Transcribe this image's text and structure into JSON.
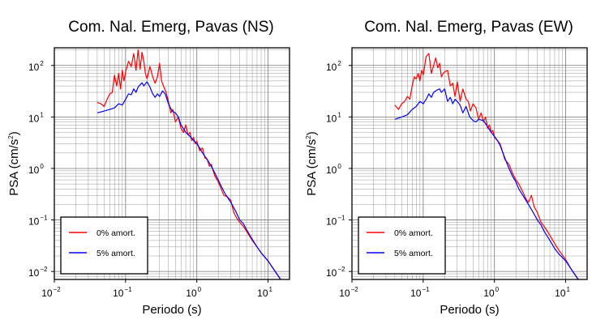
{
  "chart_data": [
    {
      "type": "line",
      "title": "Com. Nal. Emerg, Pavas (NS)",
      "xlabel": "Periodo (s)",
      "ylabel_prefix": "PSA (cm/s",
      "ylabel_sup": "2",
      "ylabel_suffix": ")",
      "x_scale": "log",
      "y_scale": "log",
      "xlim": [
        0.01,
        20
      ],
      "ylim": [
        0.007,
        220
      ],
      "grid": true,
      "legend": "bottom-left",
      "x_ticks": [
        {
          "value": 0.01,
          "base": "10",
          "exp": "−2"
        },
        {
          "value": 0.1,
          "base": "10",
          "exp": "−1"
        },
        {
          "value": 1,
          "base": "10",
          "exp": "0"
        },
        {
          "value": 10,
          "base": "10",
          "exp": "1"
        }
      ],
      "y_ticks": [
        {
          "value": 0.01,
          "base": "10",
          "exp": "−2"
        },
        {
          "value": 0.1,
          "base": "10",
          "exp": "−1"
        },
        {
          "value": 1,
          "base": "10",
          "exp": "0"
        },
        {
          "value": 10,
          "base": "10",
          "exp": "1"
        },
        {
          "value": 100,
          "base": "10",
          "exp": "2"
        }
      ],
      "series": [
        {
          "name": "0% amort.",
          "color": "#ff0000",
          "x": [
            0.04,
            0.045,
            0.05,
            0.055,
            0.06,
            0.065,
            0.07,
            0.075,
            0.08,
            0.085,
            0.09,
            0.095,
            0.1,
            0.11,
            0.12,
            0.13,
            0.14,
            0.15,
            0.16,
            0.17,
            0.18,
            0.19,
            0.2,
            0.22,
            0.24,
            0.26,
            0.28,
            0.3,
            0.32,
            0.34,
            0.37,
            0.4,
            0.43,
            0.46,
            0.5,
            0.55,
            0.6,
            0.65,
            0.7,
            0.75,
            0.8,
            0.85,
            0.9,
            0.95,
            1.0,
            1.1,
            1.2,
            1.3,
            1.4,
            1.5,
            1.6,
            1.7,
            1.8,
            2.0,
            2.2,
            2.4,
            2.7,
            3.0,
            3.3,
            3.6,
            4.0,
            4.5,
            5.0,
            6.0,
            7.0,
            8.0,
            10.0,
            12.0,
            15.0
          ],
          "y": [
            19,
            18,
            16,
            22,
            28,
            30,
            65,
            40,
            70,
            35,
            80,
            50,
            75,
            120,
            95,
            170,
            80,
            200,
            85,
            180,
            120,
            70,
            55,
            95,
            60,
            45,
            60,
            110,
            50,
            40,
            30,
            20,
            12,
            14,
            8,
            10,
            6,
            5,
            7,
            4.5,
            5,
            3.5,
            4,
            3,
            3.4,
            2.2,
            2.5,
            1.6,
            1.5,
            1.1,
            1.2,
            0.9,
            0.7,
            0.55,
            0.4,
            0.3,
            0.28,
            0.24,
            0.14,
            0.11,
            0.09,
            0.075,
            0.06,
            0.04,
            0.03,
            0.023,
            0.016,
            0.011,
            0.007
          ]
        },
        {
          "name": "5% amort.",
          "color": "#0000ff",
          "x": [
            0.04,
            0.05,
            0.06,
            0.07,
            0.08,
            0.09,
            0.1,
            0.11,
            0.12,
            0.13,
            0.14,
            0.15,
            0.16,
            0.17,
            0.18,
            0.2,
            0.22,
            0.24,
            0.26,
            0.28,
            0.3,
            0.33,
            0.36,
            0.4,
            0.45,
            0.5,
            0.55,
            0.6,
            0.7,
            0.8,
            0.9,
            1.0,
            1.1,
            1.2,
            1.4,
            1.6,
            1.8,
            2.0,
            2.2,
            2.5,
            3.0,
            3.5,
            4.0,
            4.5,
            5.0,
            6.0,
            7.0,
            8.0,
            10.0,
            12.0,
            15.0
          ],
          "y": [
            12,
            13,
            14,
            15,
            18,
            17,
            22,
            28,
            27,
            35,
            30,
            38,
            42,
            46,
            40,
            48,
            38,
            28,
            24,
            28,
            25,
            32,
            28,
            18,
            13,
            12,
            10,
            7,
            5,
            4.2,
            3.5,
            3.0,
            2.5,
            2.0,
            1.5,
            1.1,
            0.8,
            0.6,
            0.45,
            0.32,
            0.22,
            0.15,
            0.1,
            0.085,
            0.065,
            0.042,
            0.03,
            0.023,
            0.016,
            0.011,
            0.007
          ]
        }
      ]
    },
    {
      "type": "line",
      "title": "Com. Nal. Emerg, Pavas (EW)",
      "xlabel": "Periodo (s)",
      "ylabel_prefix": "PSA (cm/s",
      "ylabel_sup": "2",
      "ylabel_suffix": ")",
      "x_scale": "log",
      "y_scale": "log",
      "xlim": [
        0.01,
        20
      ],
      "ylim": [
        0.007,
        220
      ],
      "grid": true,
      "legend": "bottom-left",
      "x_ticks": [
        {
          "value": 0.01,
          "base": "10",
          "exp": "−2"
        },
        {
          "value": 0.1,
          "base": "10",
          "exp": "−1"
        },
        {
          "value": 1,
          "base": "10",
          "exp": "0"
        },
        {
          "value": 10,
          "base": "10",
          "exp": "1"
        }
      ],
      "y_ticks": [
        {
          "value": 0.01,
          "base": "10",
          "exp": "−2"
        },
        {
          "value": 0.1,
          "base": "10",
          "exp": "−1"
        },
        {
          "value": 1,
          "base": "10",
          "exp": "0"
        },
        {
          "value": 10,
          "base": "10",
          "exp": "1"
        },
        {
          "value": 100,
          "base": "10",
          "exp": "2"
        }
      ],
      "series": [
        {
          "name": "0% amort.",
          "color": "#ff0000",
          "x": [
            0.04,
            0.045,
            0.05,
            0.055,
            0.06,
            0.065,
            0.07,
            0.075,
            0.08,
            0.085,
            0.09,
            0.095,
            0.1,
            0.11,
            0.12,
            0.13,
            0.14,
            0.15,
            0.16,
            0.17,
            0.18,
            0.19,
            0.2,
            0.22,
            0.24,
            0.26,
            0.28,
            0.3,
            0.33,
            0.36,
            0.4,
            0.43,
            0.46,
            0.5,
            0.55,
            0.6,
            0.65,
            0.7,
            0.75,
            0.8,
            0.85,
            0.9,
            0.95,
            1.0,
            1.1,
            1.2,
            1.4,
            1.6,
            1.8,
            2.0,
            2.2,
            2.5,
            2.8,
            3.0,
            3.3,
            3.6,
            4.0,
            4.5,
            5.0,
            6.0,
            7.0,
            8.0,
            10.0,
            12.0,
            15.0
          ],
          "y": [
            17,
            14,
            18,
            20,
            25,
            22,
            40,
            60,
            55,
            70,
            50,
            80,
            65,
            150,
            170,
            70,
            100,
            140,
            90,
            110,
            60,
            70,
            75,
            80,
            40,
            45,
            25,
            48,
            20,
            35,
            22,
            20,
            13,
            18,
            15,
            9,
            12,
            8,
            10,
            6,
            7,
            5,
            5.5,
            4,
            3.5,
            3.0,
            1.5,
            1.2,
            0.8,
            0.6,
            0.5,
            0.35,
            0.25,
            0.22,
            0.3,
            0.18,
            0.14,
            0.09,
            0.075,
            0.05,
            0.035,
            0.026,
            0.017,
            0.011,
            0.007
          ]
        },
        {
          "name": "5% amort.",
          "color": "#0000ff",
          "x": [
            0.04,
            0.05,
            0.06,
            0.07,
            0.08,
            0.09,
            0.1,
            0.11,
            0.12,
            0.13,
            0.14,
            0.15,
            0.16,
            0.17,
            0.18,
            0.2,
            0.22,
            0.24,
            0.26,
            0.28,
            0.3,
            0.33,
            0.36,
            0.4,
            0.45,
            0.5,
            0.55,
            0.6,
            0.7,
            0.8,
            0.9,
            1.0,
            1.1,
            1.2,
            1.4,
            1.6,
            1.8,
            2.0,
            2.2,
            2.5,
            3.0,
            3.5,
            4.0,
            4.5,
            5.0,
            6.0,
            7.0,
            8.0,
            10.0,
            12.0,
            15.0
          ],
          "y": [
            9,
            10,
            11,
            14,
            16,
            20,
            18,
            22,
            28,
            24,
            30,
            32,
            34,
            35,
            30,
            35,
            20,
            24,
            18,
            22,
            20,
            17,
            12,
            16,
            10,
            8.5,
            8,
            9,
            8.5,
            6.5,
            5,
            4.2,
            3.5,
            2.8,
            1.6,
            1.0,
            0.7,
            0.55,
            0.4,
            0.3,
            0.2,
            0.14,
            0.1,
            0.08,
            0.06,
            0.04,
            0.028,
            0.022,
            0.016,
            0.011,
            0.007
          ]
        }
      ]
    }
  ]
}
